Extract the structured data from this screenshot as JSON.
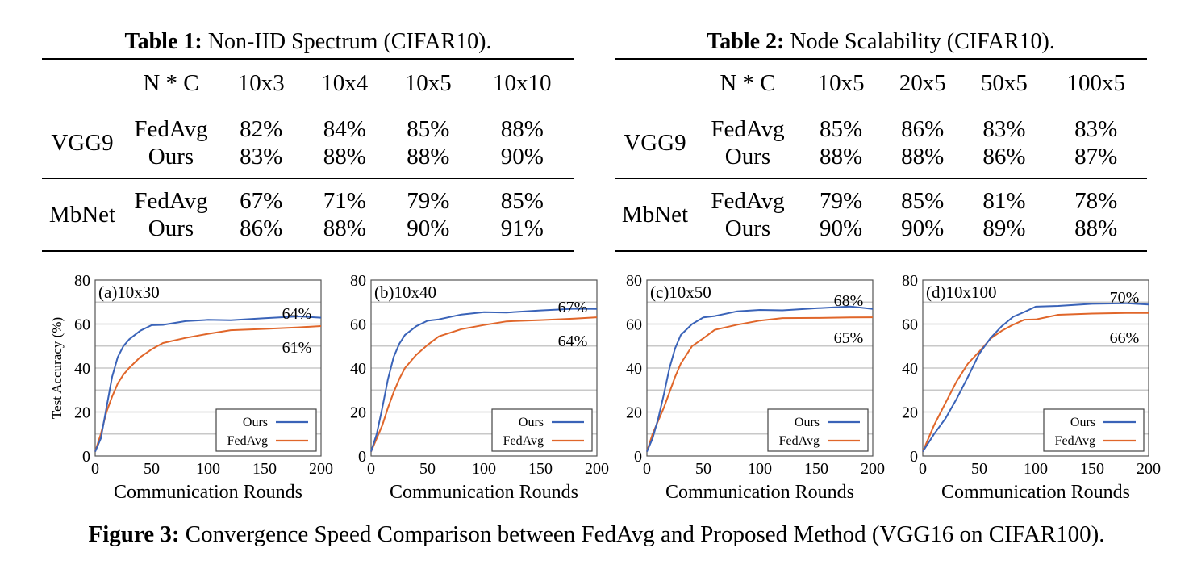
{
  "table1": {
    "label": "Table 1:",
    "title": "Non-IID Spectrum (CIFAR10).",
    "nc_label": "N * C",
    "columns": [
      "10x3",
      "10x4",
      "10x5",
      "10x10"
    ],
    "groups": [
      {
        "model": "VGG9",
        "rows": [
          {
            "method": "FedAvg",
            "values": [
              "82%",
              "84%",
              "85%",
              "88%"
            ]
          },
          {
            "method": "Ours",
            "values": [
              "83%",
              "88%",
              "88%",
              "90%"
            ]
          }
        ]
      },
      {
        "model": "MbNet",
        "rows": [
          {
            "method": "FedAvg",
            "values": [
              "67%",
              "71%",
              "79%",
              "85%"
            ]
          },
          {
            "method": "Ours",
            "values": [
              "86%",
              "88%",
              "90%",
              "91%"
            ]
          }
        ]
      }
    ]
  },
  "table2": {
    "label": "Table 2:",
    "title": "Node Scalability (CIFAR10).",
    "nc_label": "N * C",
    "columns": [
      "10x5",
      "20x5",
      "50x5",
      "100x5"
    ],
    "groups": [
      {
        "model": "VGG9",
        "rows": [
          {
            "method": "FedAvg",
            "values": [
              "85%",
              "86%",
              "83%",
              "83%"
            ]
          },
          {
            "method": "Ours",
            "values": [
              "88%",
              "88%",
              "86%",
              "87%"
            ]
          }
        ]
      },
      {
        "model": "MbNet",
        "rows": [
          {
            "method": "FedAvg",
            "values": [
              "79%",
              "85%",
              "81%",
              "78%"
            ]
          },
          {
            "method": "Ours",
            "values": [
              "90%",
              "90%",
              "89%",
              "88%"
            ]
          }
        ]
      }
    ]
  },
  "figure": {
    "label": "Figure 3:",
    "caption": "Convergence Speed Comparison between FedAvg and Proposed Method (VGG16 on CIFAR100)."
  },
  "chart_data": [
    {
      "type": "line",
      "panel_label": "(a)10x30",
      "xlabel": "Communication Rounds",
      "ylabel": "Test Accuracy (%)",
      "xlim": [
        0,
        200
      ],
      "ylim": [
        0,
        80
      ],
      "xticks": [
        0,
        50,
        100,
        150,
        200
      ],
      "yticks": [
        0,
        20,
        40,
        60,
        80
      ],
      "grid": "horizontal",
      "legend": "bottom-right",
      "annotations": [
        "64%",
        "61%"
      ],
      "series": [
        {
          "name": "Ours",
          "color": "#3a63b8",
          "x": [
            0,
            5,
            10,
            15,
            20,
            25,
            30,
            40,
            50,
            60,
            80,
            100,
            120,
            150,
            180,
            200
          ],
          "y": [
            2,
            8,
            22,
            36,
            45,
            50,
            53,
            57,
            59,
            60,
            61,
            61.5,
            62,
            62.5,
            63,
            63
          ]
        },
        {
          "name": "FedAvg",
          "color": "#e0662a",
          "x": [
            0,
            5,
            10,
            15,
            20,
            25,
            30,
            40,
            50,
            60,
            80,
            100,
            120,
            150,
            180,
            200
          ],
          "y": [
            2,
            10,
            20,
            27,
            33,
            37,
            40,
            45,
            49,
            51,
            54,
            56,
            57,
            58,
            59,
            59
          ]
        }
      ]
    },
    {
      "type": "line",
      "panel_label": "(b)10x40",
      "xlabel": "Communication Rounds",
      "ylabel": "",
      "xlim": [
        0,
        200
      ],
      "ylim": [
        0,
        80
      ],
      "xticks": [
        0,
        50,
        100,
        150,
        200
      ],
      "yticks": [
        0,
        20,
        40,
        60,
        80
      ],
      "grid": "horizontal",
      "legend": "bottom-right",
      "annotations": [
        "67%",
        "64%"
      ],
      "series": [
        {
          "name": "Ours",
          "color": "#3a63b8",
          "x": [
            0,
            5,
            10,
            15,
            20,
            25,
            30,
            40,
            50,
            60,
            80,
            100,
            120,
            150,
            180,
            200
          ],
          "y": [
            2,
            10,
            22,
            35,
            45,
            51,
            55,
            59,
            61,
            62.5,
            64,
            65,
            65.5,
            66,
            66.5,
            67
          ]
        },
        {
          "name": "FedAvg",
          "color": "#e0662a",
          "x": [
            0,
            5,
            10,
            15,
            20,
            25,
            30,
            40,
            50,
            60,
            80,
            100,
            120,
            150,
            180,
            200
          ],
          "y": [
            2,
            8,
            14,
            22,
            29,
            35,
            40,
            46,
            51,
            54,
            58,
            60,
            61,
            62,
            63,
            63
          ]
        }
      ]
    },
    {
      "type": "line",
      "panel_label": "(c)10x50",
      "xlabel": "Communication Rounds",
      "ylabel": "",
      "xlim": [
        0,
        200
      ],
      "ylim": [
        0,
        80
      ],
      "xticks": [
        0,
        50,
        100,
        150,
        200
      ],
      "yticks": [
        0,
        20,
        40,
        60,
        80
      ],
      "grid": "horizontal",
      "legend": "bottom-right",
      "annotations": [
        "68%",
        "65%"
      ],
      "series": [
        {
          "name": "Ours",
          "color": "#3a63b8",
          "x": [
            0,
            5,
            10,
            15,
            20,
            25,
            30,
            40,
            50,
            60,
            80,
            100,
            120,
            150,
            180,
            200
          ],
          "y": [
            2,
            8,
            17,
            28,
            40,
            49,
            55,
            60,
            62.5,
            64,
            65.5,
            66,
            66.5,
            67,
            67.5,
            67
          ]
        },
        {
          "name": "FedAvg",
          "color": "#e0662a",
          "x": [
            0,
            5,
            10,
            15,
            20,
            25,
            30,
            40,
            50,
            60,
            80,
            100,
            120,
            150,
            180,
            200
          ],
          "y": [
            2,
            10,
            16,
            22,
            29,
            36,
            42,
            50,
            54,
            57,
            60,
            62,
            62.5,
            63,
            63.5,
            63
          ]
        }
      ]
    },
    {
      "type": "line",
      "panel_label": "(d)10x100",
      "xlabel": "Communication Rounds",
      "ylabel": "",
      "xlim": [
        0,
        200
      ],
      "ylim": [
        0,
        80
      ],
      "xticks": [
        0,
        50,
        100,
        150,
        200
      ],
      "yticks": [
        0,
        20,
        40,
        60,
        80
      ],
      "grid": "horizontal",
      "legend": "bottom-right",
      "annotations": [
        "70%",
        "66%"
      ],
      "series": [
        {
          "name": "Ours",
          "color": "#3a63b8",
          "x": [
            0,
            5,
            10,
            20,
            30,
            40,
            50,
            60,
            70,
            80,
            90,
            100,
            120,
            150,
            180,
            200
          ],
          "y": [
            2,
            6,
            10,
            17,
            26,
            36,
            46,
            54,
            59,
            63,
            66,
            67.5,
            68.5,
            69,
            69,
            69
          ]
        },
        {
          "name": "FedAvg",
          "color": "#e0662a",
          "x": [
            0,
            5,
            10,
            20,
            30,
            40,
            50,
            60,
            70,
            80,
            90,
            100,
            120,
            150,
            180,
            200
          ],
          "y": [
            2,
            8,
            14,
            24,
            34,
            42,
            48,
            53,
            57,
            60,
            61.5,
            62.5,
            64,
            65,
            65.5,
            65
          ]
        }
      ]
    }
  ]
}
